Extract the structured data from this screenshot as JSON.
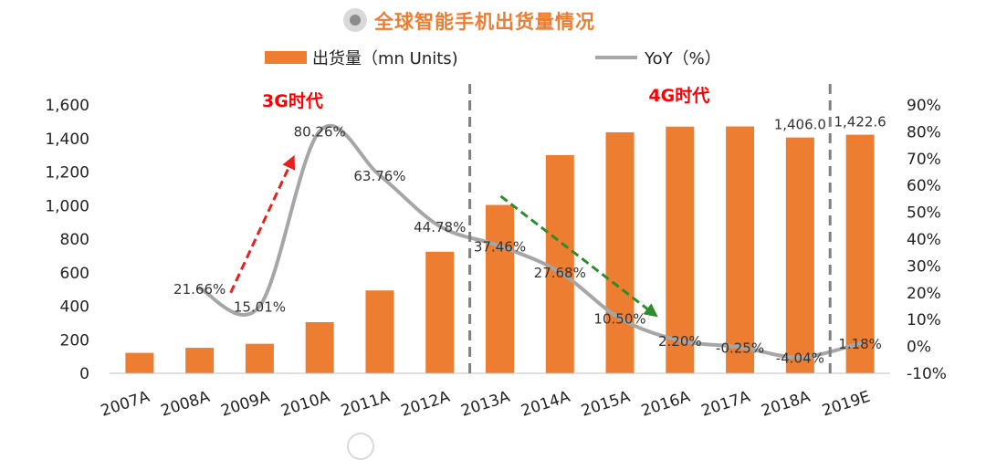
{
  "header": {
    "title": "全球智能手机出货量情况"
  },
  "legend": {
    "bar_label": "出货量（mn Units)",
    "line_label": "YoY（%）"
  },
  "annotations": {
    "era_3g": "3G时代",
    "era_4g": "4G时代"
  },
  "colors": {
    "bar": "#ed7d31",
    "line": "#a6a6a6",
    "title": "#ed7d31",
    "era_text": "#ff0000",
    "arrow_up": "#e32222",
    "arrow_down": "#2e8b2e",
    "divider": "#808080"
  },
  "chart_data": {
    "type": "bar+line",
    "categories": [
      "2007A",
      "2008A",
      "2009A",
      "2010A",
      "2011A",
      "2012A",
      "2013A",
      "2014A",
      "2015A",
      "2016A",
      "2017A",
      "2018A",
      "2019E"
    ],
    "series": [
      {
        "name": "出货量（mn Units)",
        "type": "bar",
        "axis": "left",
        "values": [
          122,
          152,
          176,
          305,
          494,
          725,
          1004,
          1301,
          1437,
          1471,
          1472,
          1406.0,
          1422.6
        ],
        "data_labels": [
          "",
          "",
          "",
          "",
          "",
          "",
          "",
          "",
          "",
          "",
          "",
          "1,406.0",
          "1,422.6"
        ]
      },
      {
        "name": "YoY（%）",
        "type": "line",
        "axis": "right",
        "values": [
          null,
          21.66,
          15.01,
          80.26,
          63.76,
          44.78,
          37.46,
          27.68,
          10.5,
          2.2,
          -0.25,
          -4.04,
          1.18
        ],
        "data_labels": [
          "",
          "21.66%",
          "15.01%",
          "80.26%",
          "63.76%",
          "44.78%",
          "37.46%",
          "27.68%",
          "10.50%",
          "2.20%",
          "-0.25%",
          "-4.04%",
          "1.18%"
        ]
      }
    ],
    "y_left": {
      "ylim": [
        0,
        1600
      ],
      "ticks": [
        "0",
        "200",
        "400",
        "600",
        "800",
        "1,000",
        "1,200",
        "1,400",
        "1,600"
      ]
    },
    "y_right": {
      "ylim": [
        -10,
        90
      ],
      "ticks": [
        "-10%",
        "0%",
        "10%",
        "20%",
        "30%",
        "40%",
        "50%",
        "60%",
        "70%",
        "80%",
        "90%"
      ]
    },
    "dividers_after_category": [
      "2012A",
      "2018A"
    ],
    "legend_position": "top",
    "grid": false
  }
}
